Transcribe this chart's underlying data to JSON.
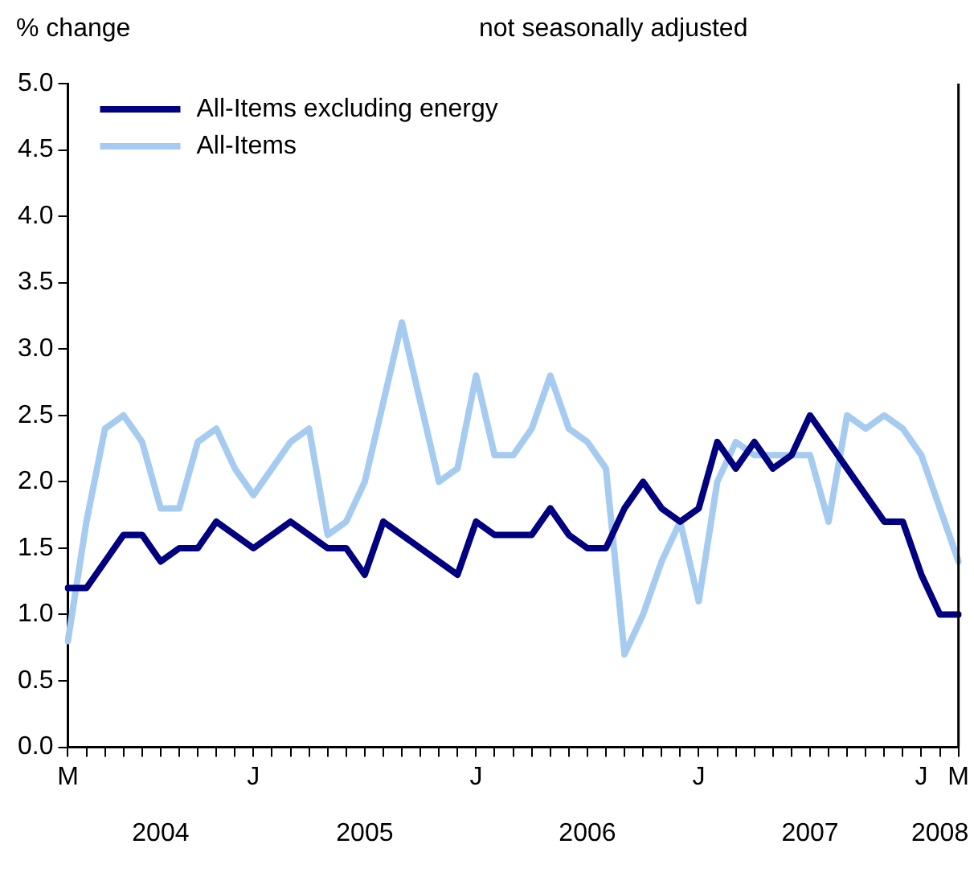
{
  "chart_data": {
    "type": "line",
    "ylabel": "% change",
    "subtitle": "not seasonally adjusted",
    "categories": [
      "M",
      null,
      null,
      null,
      null,
      null,
      null,
      null,
      null,
      null,
      "J",
      null,
      null,
      null,
      null,
      null,
      null,
      null,
      null,
      null,
      null,
      null,
      "J",
      null,
      null,
      null,
      null,
      null,
      null,
      null,
      null,
      null,
      null,
      null,
      "J",
      null,
      null,
      null,
      null,
      null,
      null,
      null,
      null,
      null,
      null,
      null,
      "J",
      null,
      "M"
    ],
    "series": [
      {
        "name": "All-Items excluding energy",
        "color": "#000080",
        "values": [
          1.2,
          1.2,
          1.4,
          1.6,
          1.6,
          1.4,
          1.5,
          1.5,
          1.7,
          1.6,
          1.5,
          1.6,
          1.7,
          1.6,
          1.5,
          1.5,
          1.3,
          1.7,
          1.6,
          1.5,
          1.4,
          1.3,
          1.7,
          1.6,
          1.6,
          1.6,
          1.8,
          1.6,
          1.5,
          1.5,
          1.8,
          2.0,
          1.8,
          1.7,
          1.8,
          2.3,
          2.1,
          2.3,
          2.1,
          2.2,
          2.5,
          2.3,
          2.1,
          1.9,
          1.7,
          1.7,
          1.3,
          1.0,
          1.0
        ]
      },
      {
        "name": "All-Items",
        "color": "#a6cbf0",
        "values": [
          0.8,
          1.7,
          2.4,
          2.5,
          2.3,
          1.8,
          1.8,
          2.3,
          2.4,
          2.1,
          1.9,
          2.1,
          2.3,
          2.4,
          1.6,
          1.7,
          2.0,
          2.6,
          3.2,
          2.6,
          2.0,
          2.1,
          2.8,
          2.2,
          2.2,
          2.4,
          2.8,
          2.4,
          2.3,
          2.1,
          0.7,
          1.0,
          1.4,
          1.7,
          1.1,
          2.0,
          2.3,
          2.2,
          2.2,
          2.2,
          2.2,
          1.7,
          2.5,
          2.4,
          2.5,
          2.4,
          2.2,
          1.8,
          1.4
        ]
      }
    ],
    "ylim": [
      0,
      5
    ],
    "yticks": [
      {
        "value": 0,
        "label": "0.0"
      },
      {
        "value": 0.5,
        "label": "0.5"
      },
      {
        "value": 1,
        "label": "1.0"
      },
      {
        "value": 1.5,
        "label": "1.5"
      },
      {
        "value": 2,
        "label": "2.0"
      },
      {
        "value": 2.5,
        "label": "2.5"
      },
      {
        "value": 3,
        "label": "3.0"
      },
      {
        "value": 3.5,
        "label": "3.5"
      },
      {
        "value": 4,
        "label": "4.0"
      },
      {
        "value": 4.5,
        "label": "4.5"
      },
      {
        "value": 5,
        "label": "5.0"
      }
    ],
    "annotations": [
      "2004",
      "2005",
      "2006",
      "2007",
      "2008"
    ],
    "grid": false,
    "legend": "top left",
    "marker": "none",
    "line_style": "solid"
  }
}
